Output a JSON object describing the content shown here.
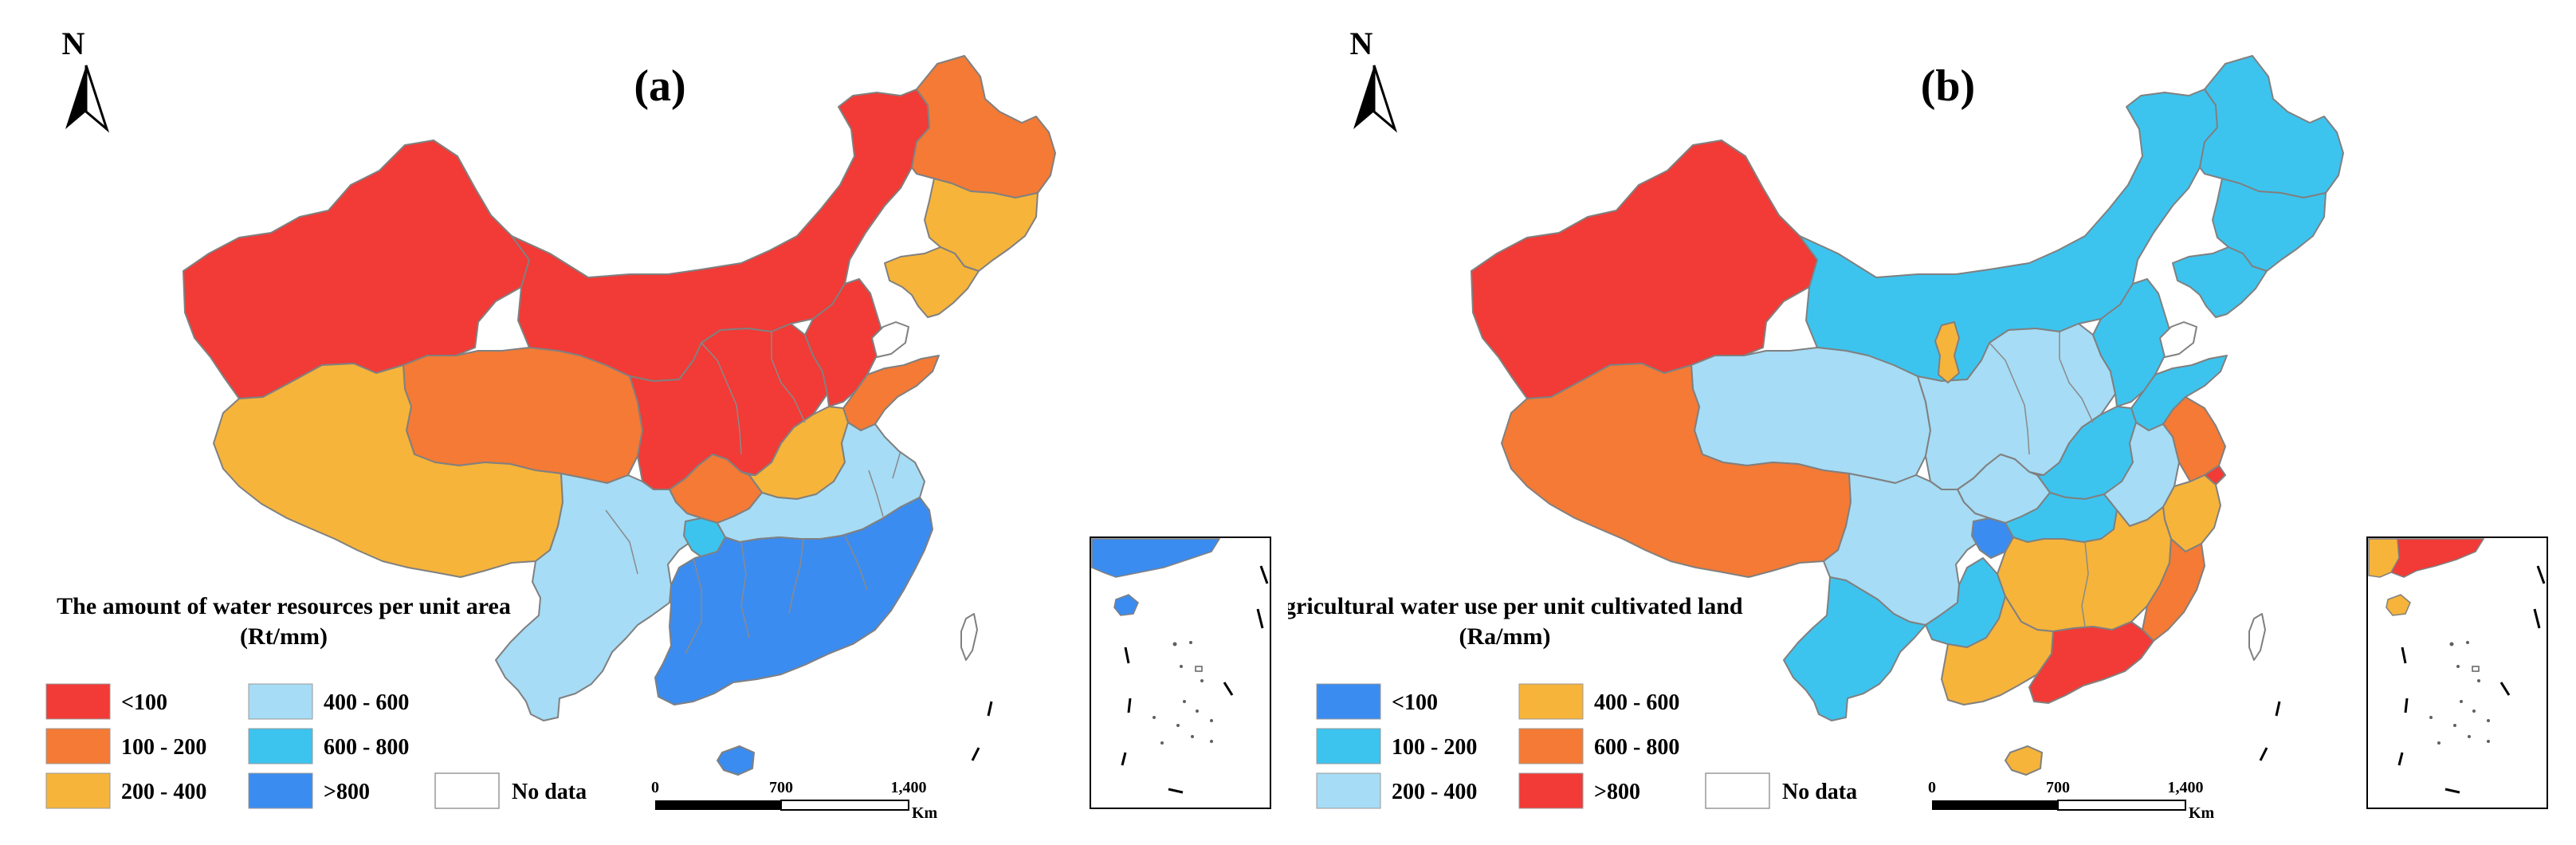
{
  "colors": {
    "red": "#f23a36",
    "orange": "#f47a35",
    "yellow": "#f6b43a",
    "light_blue": "#a6dcf5",
    "cyan": "#3cc4ef",
    "blue": "#3b8cf0",
    "border": "#808080"
  },
  "panel_a": {
    "label": "(a)",
    "north": "N",
    "legend_title_line1": "The amount of water resources per unit area",
    "legend_title_line2": "(Rt/mm)",
    "legend": [
      {
        "label": "<100",
        "color": "#f23a36"
      },
      {
        "label": "100 - 200",
        "color": "#f47a35"
      },
      {
        "label": "200 - 400",
        "color": "#f6b43a"
      },
      {
        "label": "400 - 600",
        "color": "#a6dcf5"
      },
      {
        "label": "600 - 800",
        "color": "#3cc4ef"
      },
      {
        "label": ">800",
        "color": "#3b8cf0"
      }
    ],
    "no_data": "No data",
    "scale": {
      "t0": "0",
      "t1": "700",
      "t2": "1,400",
      "unit": "Km"
    }
  },
  "panel_b": {
    "label": "(b)",
    "north": "N",
    "legend_title_line1": "Agricultural water use per unit cultivated land",
    "legend_title_line2": "(Ra/mm)",
    "legend": [
      {
        "label": "<100",
        "color": "#3b8cf0"
      },
      {
        "label": "100 - 200",
        "color": "#3cc4ef"
      },
      {
        "label": "200 - 400",
        "color": "#a6dcf5"
      },
      {
        "label": "400 - 600",
        "color": "#f6b43a"
      },
      {
        "label": "600 - 800",
        "color": "#f47a35"
      },
      {
        "label": ">800",
        "color": "#f23a36"
      }
    ],
    "no_data": "No data",
    "scale": {
      "t0": "0",
      "t1": "700",
      "t2": "1,400",
      "unit": "Km"
    }
  }
}
